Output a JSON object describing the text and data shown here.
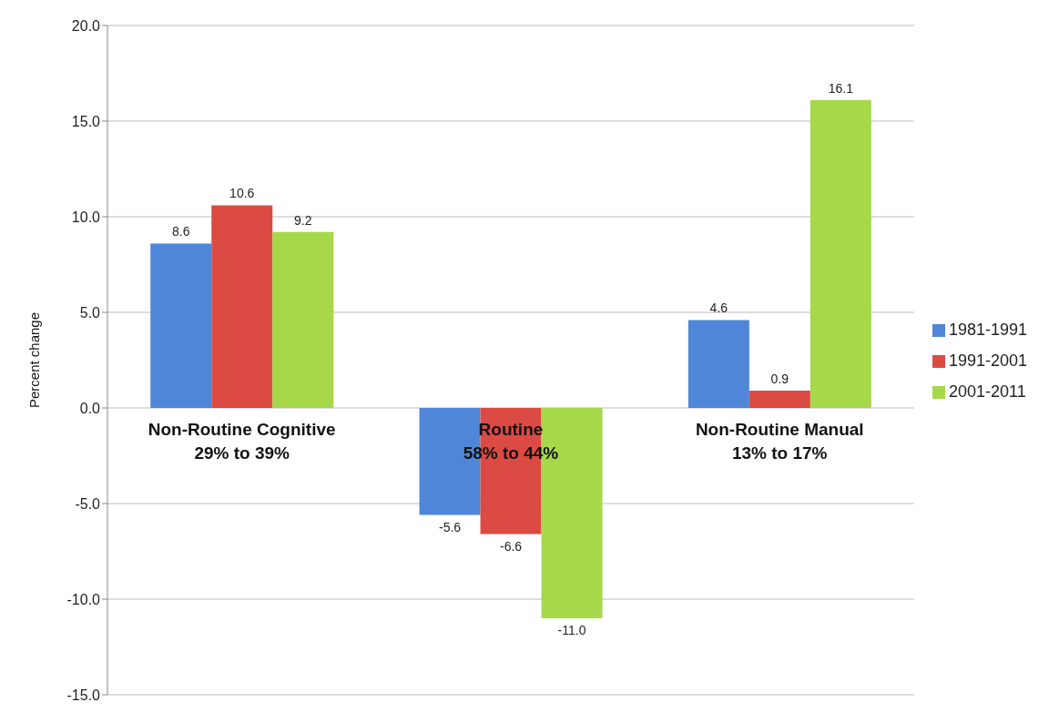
{
  "chart_data": {
    "type": "bar",
    "ylabel": "Percent change",
    "categories": [
      "Non-Routine Cognitive\n29% to 39%",
      "Routine\n58% to 44%",
      "Non-Routine Manual\n13% to 17%"
    ],
    "series": [
      {
        "name": "1981-1991",
        "color": "#4f86d8",
        "values": [
          8.6,
          -5.6,
          4.6
        ],
        "value_labels": [
          "8.6",
          "-5.6",
          "4.6"
        ]
      },
      {
        "name": "1991-2001",
        "color": "#dc4a44",
        "values": [
          10.6,
          -6.6,
          0.9
        ],
        "value_labels": [
          "10.6",
          "-6.6",
          "0.9"
        ]
      },
      {
        "name": "2001-2011",
        "color": "#a6d84a",
        "values": [
          9.2,
          -11.0,
          16.1
        ],
        "value_labels": [
          "9.2",
          "-11.0",
          "16.1"
        ]
      }
    ],
    "ylim": [
      -15,
      20
    ],
    "yticks": [
      {
        "value": -15,
        "label": "-15.0"
      },
      {
        "value": -10,
        "label": "-10.0"
      },
      {
        "value": -5,
        "label": "-5.0"
      },
      {
        "value": 0,
        "label": "0.0"
      },
      {
        "value": 5,
        "label": "5.0"
      },
      {
        "value": 10,
        "label": "10.0"
      },
      {
        "value": 15,
        "label": "15.0"
      },
      {
        "value": 20,
        "label": "20.0"
      }
    ],
    "grid": "y",
    "legend": "right"
  }
}
